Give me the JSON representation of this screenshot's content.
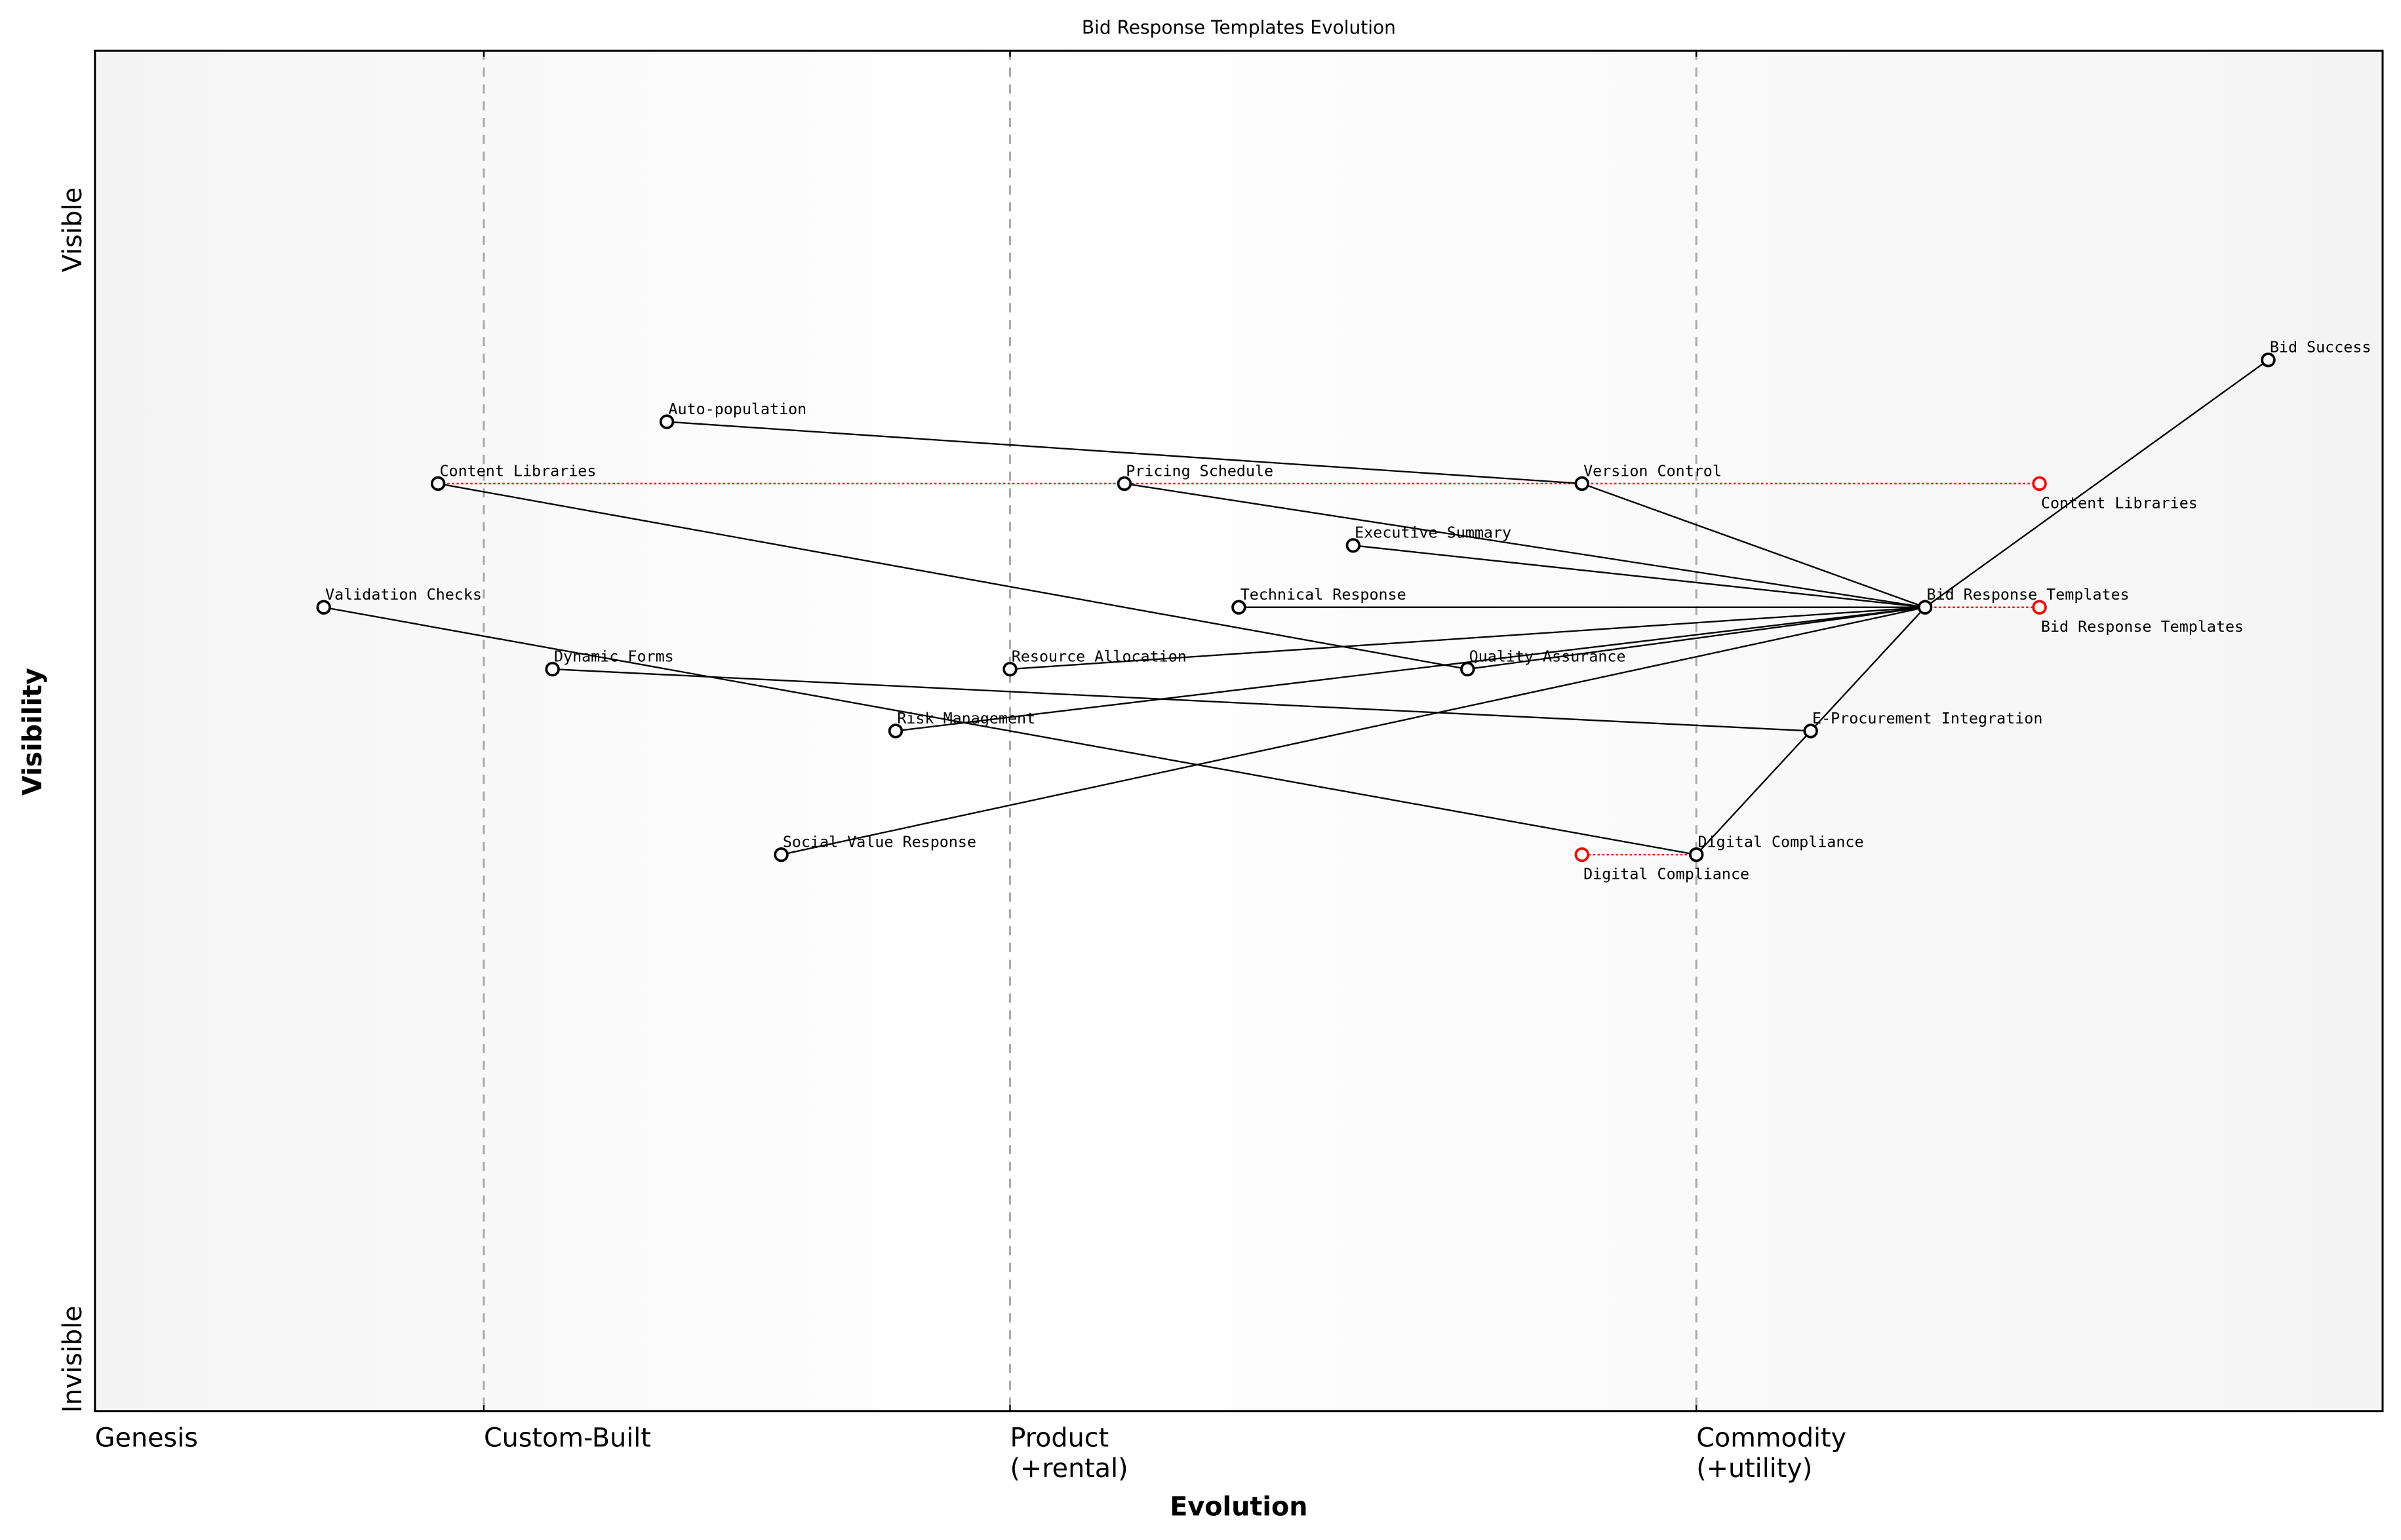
{
  "chart_data": {
    "type": "wardley-map",
    "title": "Bid Response Templates Evolution",
    "xlabel": "Evolution",
    "ylabel": "Visibility",
    "xlim": [
      0,
      1
    ],
    "ylim": [
      -0.05,
      1.05
    ],
    "y_axis_labels": {
      "top": "Visible",
      "bottom": "Invisible"
    },
    "stages": [
      {
        "label": "Genesis",
        "x": 0.0
      },
      {
        "label": "Custom-Built",
        "x": 0.17
      },
      {
        "label": "Product\n(+rental)",
        "x": 0.4
      },
      {
        "label": "Commodity\n(+utility)",
        "x": 0.7
      }
    ],
    "components": [
      {
        "name": "Bid Success",
        "x": 0.95,
        "y": 0.8
      },
      {
        "name": "Auto-population",
        "x": 0.25,
        "y": 0.75
      },
      {
        "name": "Content Libraries",
        "x": 0.15,
        "y": 0.7
      },
      {
        "name": "Pricing Schedule",
        "x": 0.45,
        "y": 0.7
      },
      {
        "name": "Version Control",
        "x": 0.65,
        "y": 0.7
      },
      {
        "name": "Executive Summary",
        "x": 0.55,
        "y": 0.65
      },
      {
        "name": "Validation Checks",
        "x": 0.1,
        "y": 0.6
      },
      {
        "name": "Technical Response",
        "x": 0.5,
        "y": 0.6
      },
      {
        "name": "Bid Response Templates",
        "x": 0.8,
        "y": 0.6
      },
      {
        "name": "Dynamic Forms",
        "x": 0.2,
        "y": 0.55
      },
      {
        "name": "Resource Allocation",
        "x": 0.4,
        "y": 0.55
      },
      {
        "name": "Quality Assurance",
        "x": 0.6,
        "y": 0.55
      },
      {
        "name": "Risk Management",
        "x": 0.35,
        "y": 0.5
      },
      {
        "name": "E-Procurement Integration",
        "x": 0.75,
        "y": 0.5
      },
      {
        "name": "Social Value Response",
        "x": 0.3,
        "y": 0.4
      },
      {
        "name": "Digital Compliance",
        "x": 0.7,
        "y": 0.4
      }
    ],
    "links": [
      [
        "Bid Success",
        "Bid Response Templates"
      ],
      [
        "Auto-population",
        "Version Control"
      ],
      [
        "Version Control",
        "Bid Response Templates"
      ],
      [
        "Pricing Schedule",
        "Bid Response Templates"
      ],
      [
        "Executive Summary",
        "Bid Response Templates"
      ],
      [
        "Technical Response",
        "Bid Response Templates"
      ],
      [
        "Resource Allocation",
        "Bid Response Templates"
      ],
      [
        "Quality Assurance",
        "Bid Response Templates"
      ],
      [
        "Risk Management",
        "Bid Response Templates"
      ],
      [
        "Social Value Response",
        "Bid Response Templates"
      ],
      [
        "E-Procurement Integration",
        "Bid Response Templates"
      ],
      [
        "Content Libraries",
        "Quality Assurance"
      ],
      [
        "Validation Checks",
        "Digital Compliance"
      ],
      [
        "Dynamic Forms",
        "E-Procurement Integration"
      ],
      [
        "Digital Compliance",
        "E-Procurement Integration"
      ]
    ],
    "evolutions": [
      {
        "name": "Content Libraries",
        "from": 0.15,
        "to": 0.85,
        "y": 0.7
      },
      {
        "name": "Bid Response Templates",
        "from": 0.8,
        "to": 0.85,
        "y": 0.6
      },
      {
        "name": "Digital Compliance",
        "from": 0.7,
        "to": 0.65,
        "y": 0.4
      }
    ],
    "colors": {
      "component": "#000000",
      "evolution": "#ff0000",
      "stage_line": "#aaaaaa",
      "background_edge": "#f4f4f4",
      "background_center": "#ffffff"
    }
  }
}
